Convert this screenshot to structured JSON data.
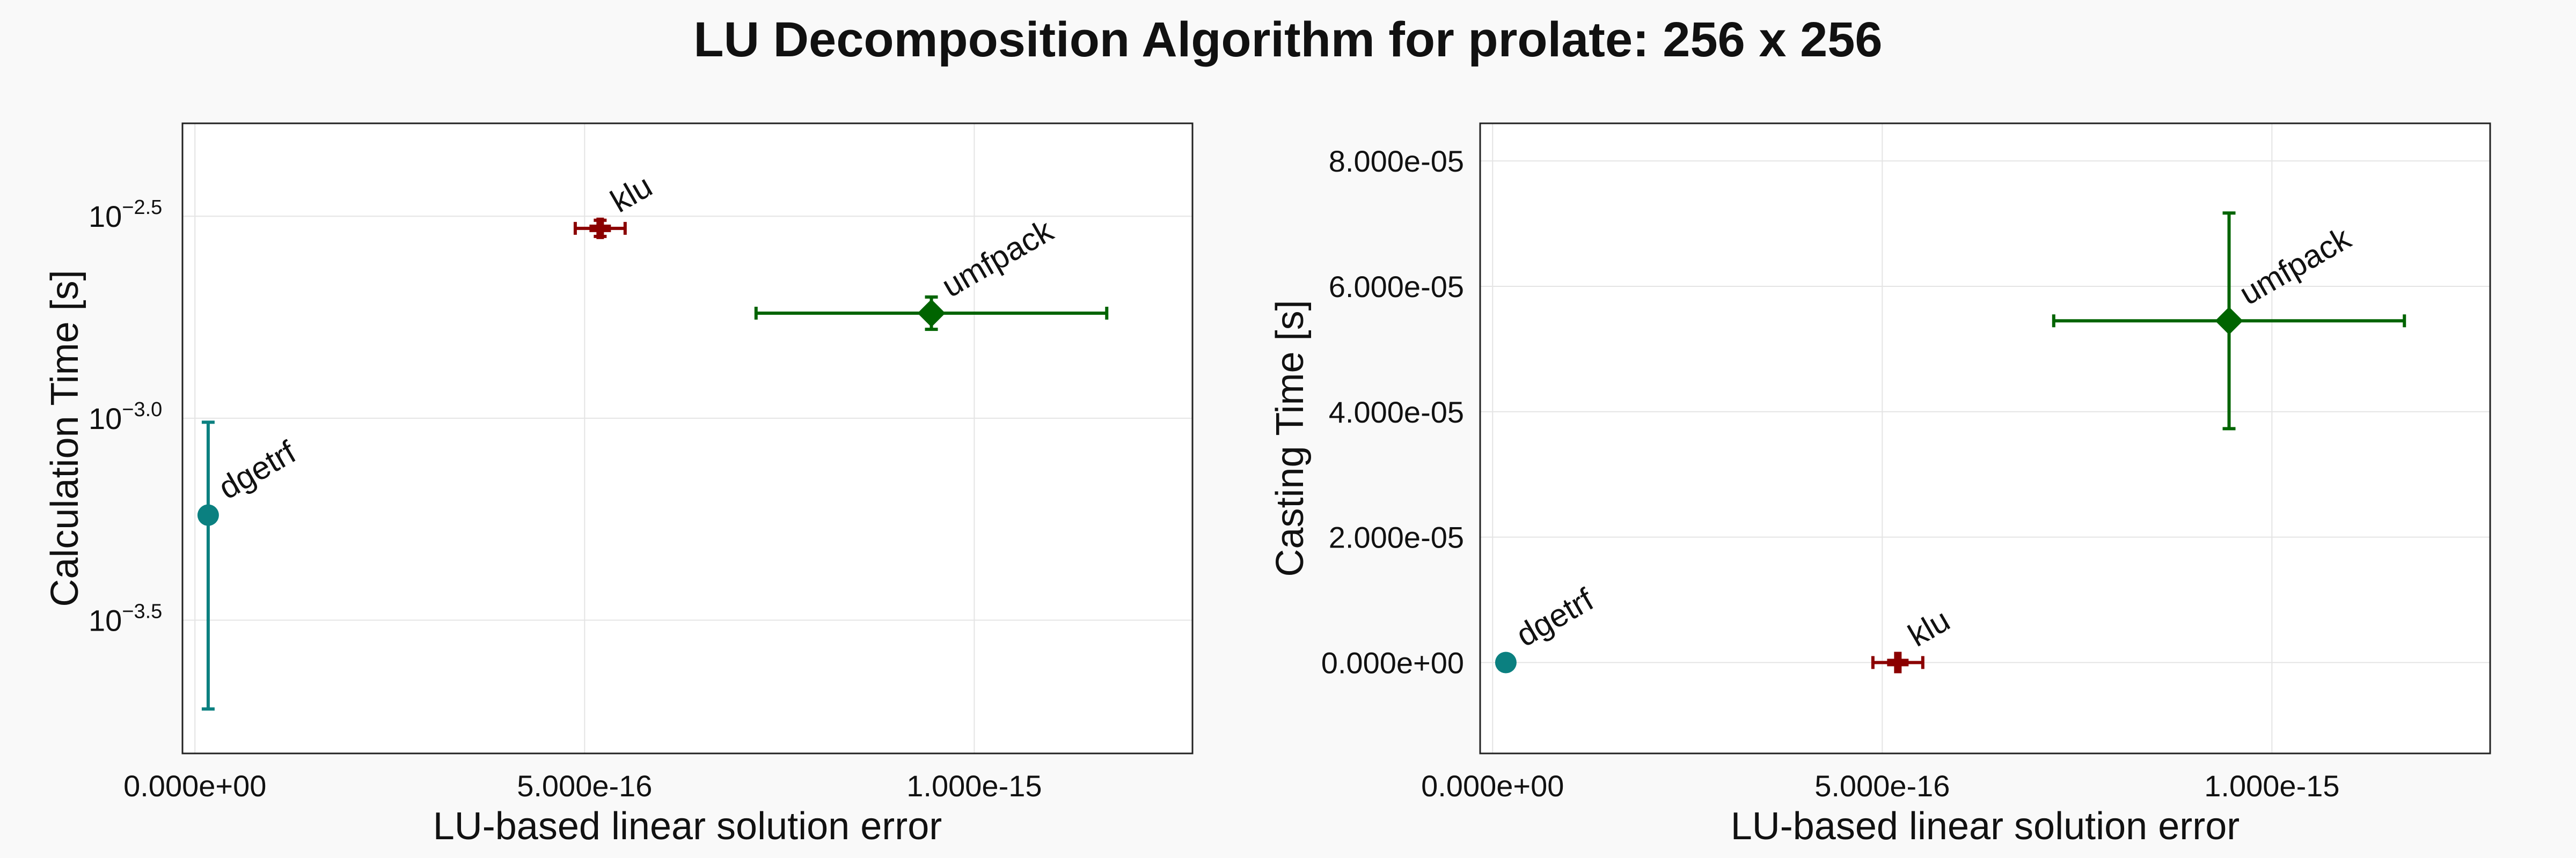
{
  "figure_title": "LU Decomposition Algorithm for prolate: 256 x 256",
  "chart_data": [
    {
      "type": "scatter",
      "title": "",
      "xlabel": "LU-based linear solution error",
      "ylabel": "Calculation Time [s]",
      "yscale": "log10",
      "xlim": [
        -1.6e-17,
        1.28e-15
      ],
      "ylim_log10": [
        -3.83,
        -2.27
      ],
      "x_ticks": [
        0,
        5e-16,
        1e-15
      ],
      "x_tick_labels": [
        "0.000e+00",
        "5.000e-16",
        "1.000e-15"
      ],
      "y_ticks_log10": [
        -3.5,
        -3.0,
        -2.5
      ],
      "y_tick_base": "10",
      "y_tick_exponents": [
        "−3.5",
        "−3.0",
        "−2.5"
      ],
      "grid": true,
      "points": [
        {
          "label": "dgetrf",
          "color": "#0b8080",
          "marker": "circle",
          "x": 1.7e-17,
          "x_err": 0,
          "y_log10": -3.24,
          "y_err_log10": [
            -3.72,
            -3.01
          ]
        },
        {
          "label": "klu",
          "color": "#8b0000",
          "marker": "cross",
          "x": 5.2e-16,
          "x_err": 3.2e-17,
          "y_log10": -2.53,
          "y_err_log10": [
            -2.55,
            -2.51
          ]
        },
        {
          "label": "umfpack",
          "color": "#006400",
          "marker": "diamond",
          "x": 9.45e-16,
          "x_err": 2.25e-16,
          "y_log10": -2.74,
          "y_err_log10": [
            -2.78,
            -2.7
          ]
        }
      ]
    },
    {
      "type": "scatter",
      "title": "",
      "xlabel": "LU-based linear solution error",
      "ylabel": "Casting Time [s]",
      "yscale": "linear",
      "xlim": [
        -1.6e-17,
        1.28e-15
      ],
      "ylim": [
        -1.45e-05,
        8.6e-05
      ],
      "x_ticks": [
        0,
        5e-16,
        1e-15
      ],
      "x_tick_labels": [
        "0.000e+00",
        "5.000e-16",
        "1.000e-15"
      ],
      "y_ticks": [
        0,
        2e-05,
        4e-05,
        6e-05,
        8e-05
      ],
      "y_tick_labels": [
        "0.000e+00",
        "2.000e-05",
        "4.000e-05",
        "6.000e-05",
        "8.000e-05"
      ],
      "grid": true,
      "points": [
        {
          "label": "dgetrf",
          "color": "#0b8080",
          "marker": "circle",
          "x": 1.7e-17,
          "x_err": 0,
          "y": 0,
          "y_err": 0
        },
        {
          "label": "klu",
          "color": "#8b0000",
          "marker": "cross",
          "x": 5.2e-16,
          "x_err": 3.2e-17,
          "y": 0,
          "y_err": 0
        },
        {
          "label": "umfpack",
          "color": "#006400",
          "marker": "diamond",
          "x": 9.45e-16,
          "x_err": 2.25e-16,
          "y": 5.45e-05,
          "y_err": 1.72e-05
        }
      ]
    }
  ]
}
